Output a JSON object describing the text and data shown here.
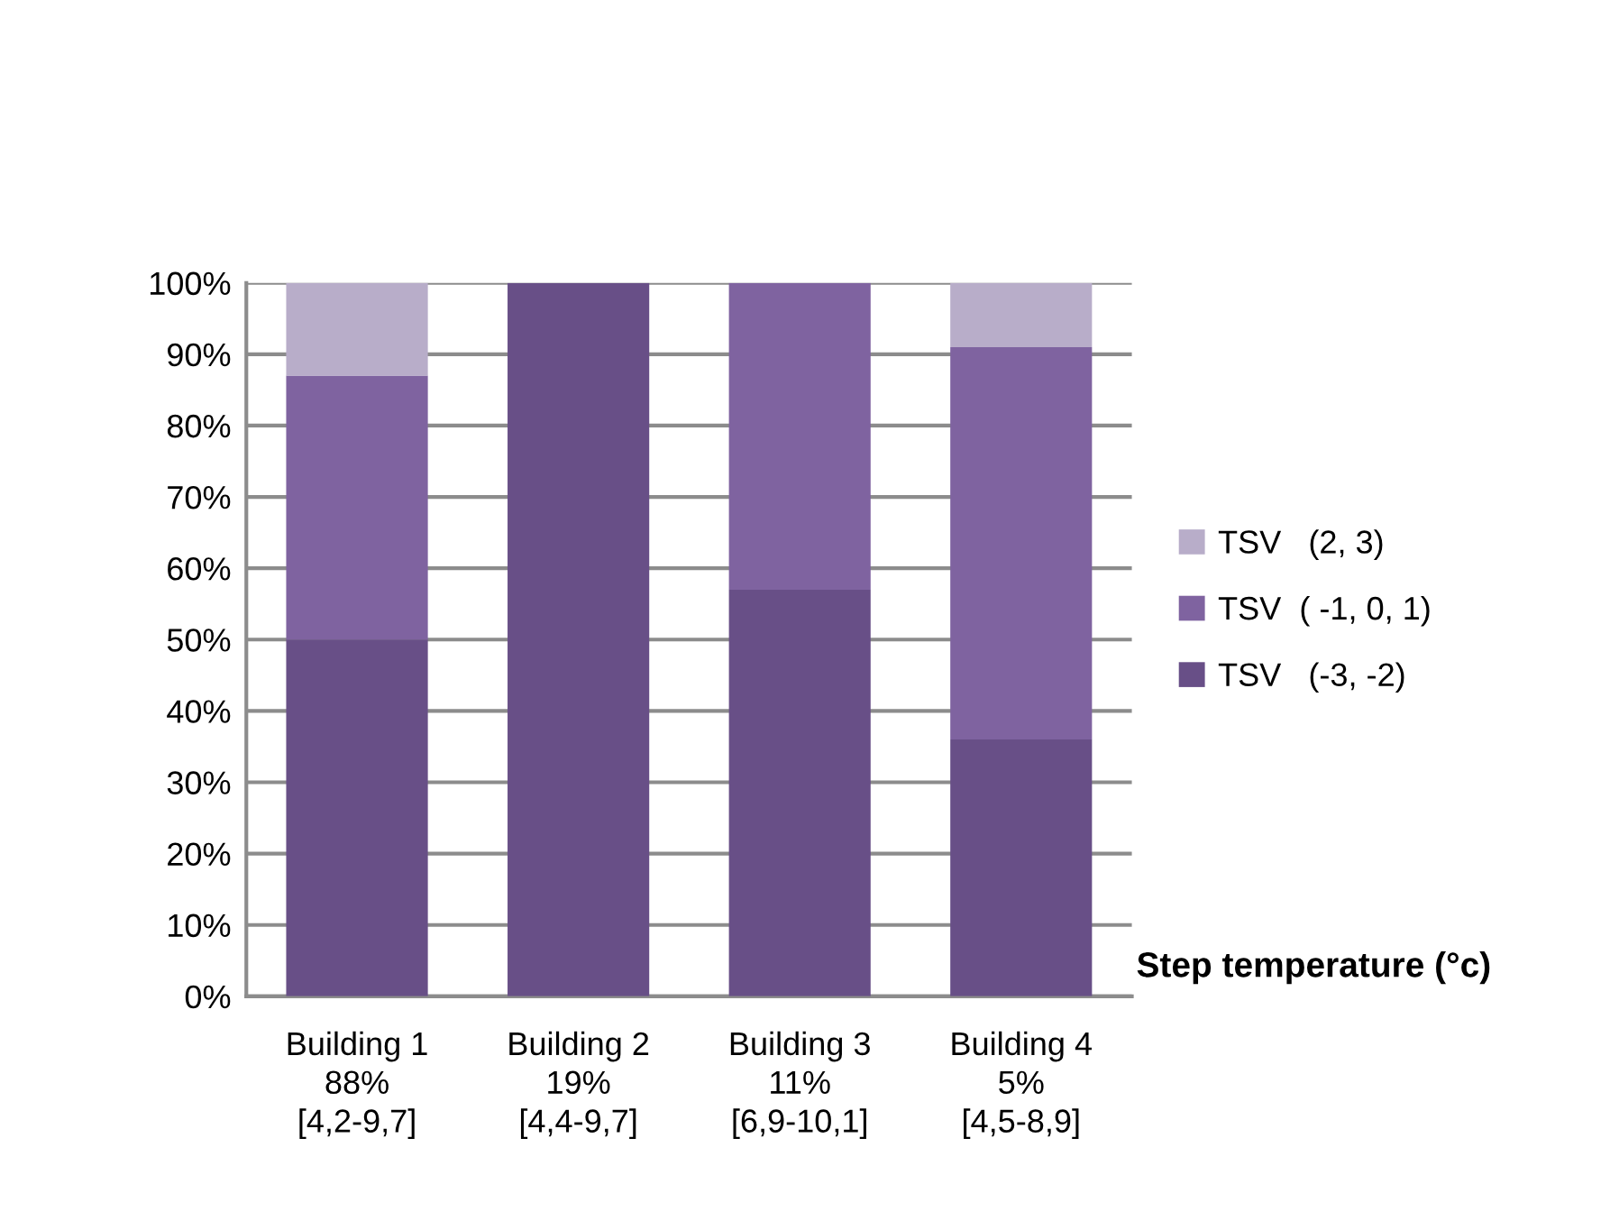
{
  "chart_data": {
    "type": "bar",
    "stacked": true,
    "categories": [
      "Building 1\n88%\n[4,2-9,7]",
      "Building 2\n19%\n[4,4-9,7]",
      "Building 3\n11%\n[6,9-10,1]",
      "Building 4\n5%\n[4,5-8,9]"
    ],
    "series": [
      {
        "name": "TSV   (-3, -2)",
        "color": "#684f87",
        "values": [
          50,
          100,
          57,
          36
        ]
      },
      {
        "name": "TSV  ( -1, 0, 1)",
        "color": "#7f63a0",
        "values": [
          37,
          0,
          43,
          55
        ]
      },
      {
        "name": "TSV   (2, 3)",
        "color": "#b8adc9",
        "values": [
          13,
          0,
          0,
          9
        ]
      }
    ],
    "xlabel": "Step temperature (°c)",
    "ylim": [
      0,
      100
    ],
    "yticks": [
      {
        "value": 0,
        "label": "0%"
      },
      {
        "value": 10,
        "label": "10%"
      },
      {
        "value": 20,
        "label": "20%"
      },
      {
        "value": 30,
        "label": "30%"
      },
      {
        "value": 40,
        "label": "40%"
      },
      {
        "value": 50,
        "label": "50%"
      },
      {
        "value": 60,
        "label": "60%"
      },
      {
        "value": 70,
        "label": "70%"
      },
      {
        "value": 80,
        "label": "80%"
      },
      {
        "value": 90,
        "label": "90%"
      },
      {
        "value": 100,
        "label": "100%"
      }
    ],
    "grid": "y",
    "legend": "right"
  }
}
